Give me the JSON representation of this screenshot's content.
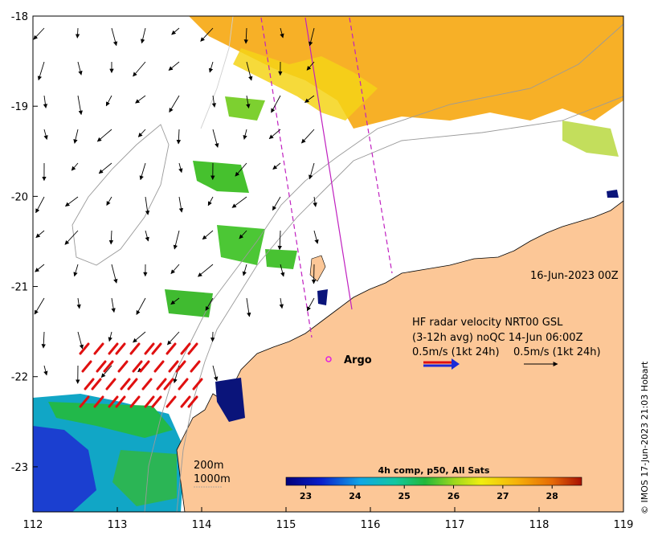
{
  "map": {
    "date_label": "16-Jun-2023 00Z",
    "credit": "© IMOS 17-Jun-2023 21:03 Hobart",
    "legend": {
      "line1": "HF radar velocity  NRT00 GSL",
      "line2": "(3-12h avg) noQC 14-Jun 06:00Z",
      "line3a": "0.5m/s (1kt 24h)",
      "line3b": "0.5m/s (1kt 24h)"
    },
    "argo_label": "Argo",
    "isobath_labels": [
      "200m",
      "1000m"
    ],
    "colorbar": {
      "title": "4h comp, p50, All Sats",
      "ticks": [
        "23",
        "24",
        "25",
        "26",
        "27",
        "28"
      ],
      "range": [
        22.6,
        28.6
      ]
    },
    "x_ticks": [
      "112",
      "113",
      "114",
      "115",
      "116",
      "117",
      "118",
      "119"
    ],
    "y_ticks": [
      "-18",
      "-19",
      "-20",
      "-21",
      "-22",
      "-23"
    ],
    "extent": {
      "lon": [
        112,
        119
      ],
      "lat": [
        -23.5,
        -18
      ]
    },
    "colors": {
      "land": "#fcc797",
      "radar_blue": "#1b2bd8",
      "radar_red": "#e01010",
      "argo": "#e020e0",
      "track": "#c020c0"
    }
  }
}
